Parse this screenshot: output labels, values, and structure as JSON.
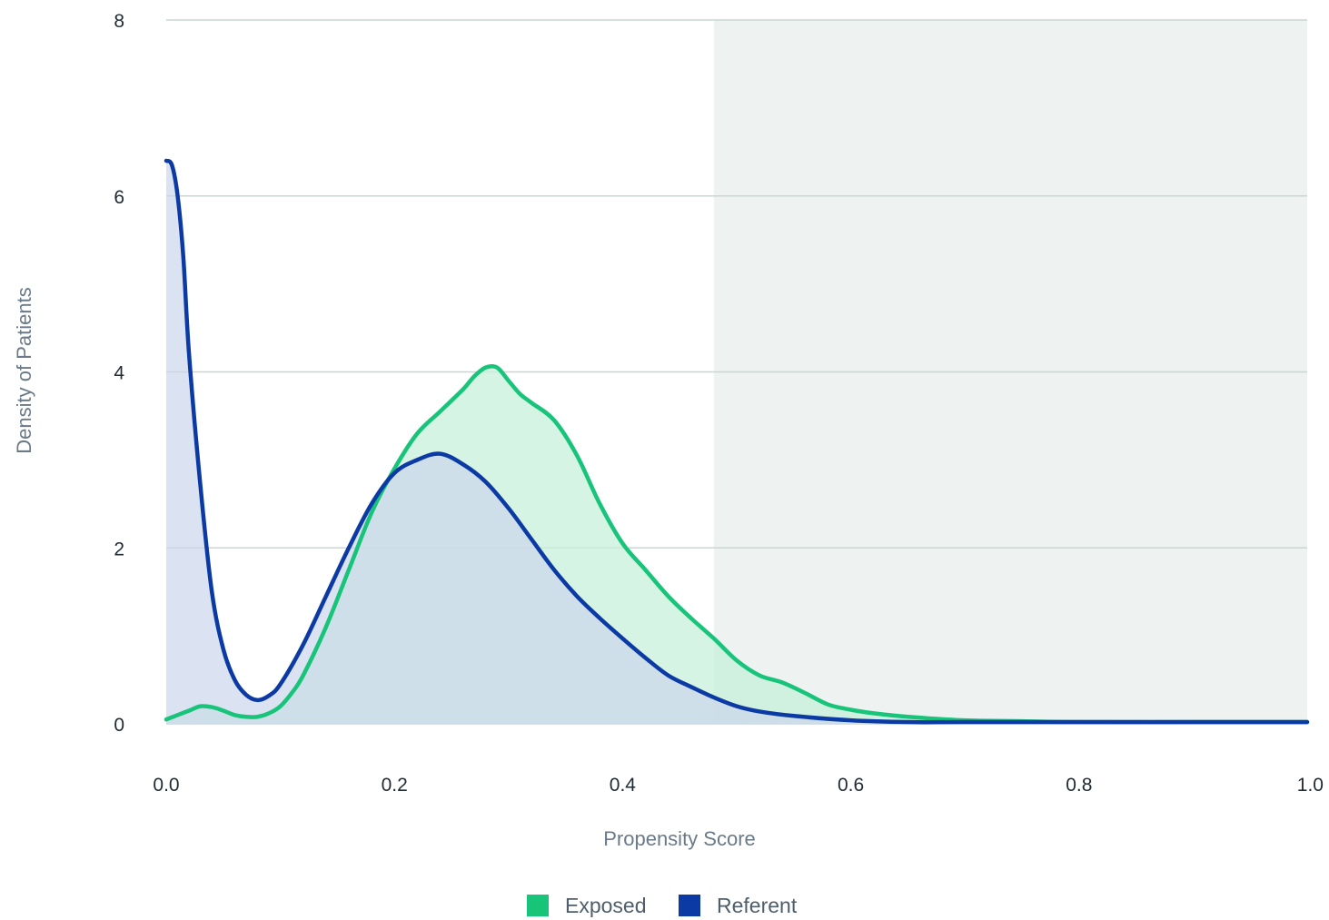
{
  "chart_data": {
    "type": "area",
    "xlabel": "Propensity Score",
    "ylabel": "Density of Patients",
    "xlim": [
      0.0,
      1.0
    ],
    "ylim": [
      0,
      8
    ],
    "x_ticks": [
      "0.0",
      "0.2",
      "0.4",
      "0.6",
      "0.8",
      "1.0"
    ],
    "y_ticks": [
      "0",
      "2",
      "4",
      "6",
      "8"
    ],
    "grid": "horizontal",
    "shaded_region": {
      "x_start": 0.48,
      "x_end": 1.0,
      "color": "#eef2f0"
    },
    "legend_position": "bottom",
    "series": [
      {
        "name": "Exposed",
        "color": "#17c47a",
        "fill": "#c7f0db",
        "x": [
          0.0,
          0.01,
          0.02,
          0.03,
          0.04,
          0.05,
          0.06,
          0.07,
          0.08,
          0.09,
          0.1,
          0.11,
          0.12,
          0.14,
          0.16,
          0.18,
          0.2,
          0.22,
          0.24,
          0.26,
          0.27,
          0.28,
          0.29,
          0.3,
          0.31,
          0.32,
          0.34,
          0.36,
          0.38,
          0.4,
          0.42,
          0.44,
          0.46,
          0.48,
          0.5,
          0.52,
          0.54,
          0.56,
          0.58,
          0.6,
          0.62,
          0.65,
          0.7,
          0.75,
          0.8,
          0.9,
          1.0
        ],
        "values": [
          0.05,
          0.1,
          0.15,
          0.2,
          0.19,
          0.15,
          0.1,
          0.08,
          0.08,
          0.12,
          0.2,
          0.35,
          0.55,
          1.1,
          1.75,
          2.4,
          2.9,
          3.3,
          3.55,
          3.8,
          3.95,
          4.05,
          4.05,
          3.9,
          3.75,
          3.65,
          3.45,
          3.05,
          2.5,
          2.05,
          1.75,
          1.45,
          1.2,
          0.97,
          0.72,
          0.55,
          0.47,
          0.35,
          0.22,
          0.16,
          0.12,
          0.08,
          0.04,
          0.03,
          0.02,
          0.02,
          0.02
        ]
      },
      {
        "name": "Referent",
        "color": "#0b3aa5",
        "fill": "#ccd6ec",
        "x": [
          0.0,
          0.005,
          0.01,
          0.015,
          0.02,
          0.03,
          0.04,
          0.05,
          0.06,
          0.07,
          0.08,
          0.09,
          0.1,
          0.12,
          0.14,
          0.16,
          0.18,
          0.2,
          0.22,
          0.24,
          0.26,
          0.28,
          0.3,
          0.32,
          0.34,
          0.36,
          0.38,
          0.4,
          0.42,
          0.44,
          0.46,
          0.48,
          0.5,
          0.52,
          0.55,
          0.6,
          0.65,
          0.7,
          0.8,
          0.9,
          1.0
        ],
        "values": [
          6.4,
          6.35,
          6.0,
          5.3,
          4.2,
          2.7,
          1.5,
          0.85,
          0.5,
          0.33,
          0.27,
          0.32,
          0.45,
          0.9,
          1.45,
          2.0,
          2.5,
          2.85,
          3.0,
          3.07,
          2.95,
          2.75,
          2.45,
          2.1,
          1.75,
          1.45,
          1.2,
          0.97,
          0.75,
          0.55,
          0.42,
          0.3,
          0.2,
          0.14,
          0.09,
          0.04,
          0.02,
          0.02,
          0.02,
          0.02,
          0.02
        ]
      }
    ]
  }
}
